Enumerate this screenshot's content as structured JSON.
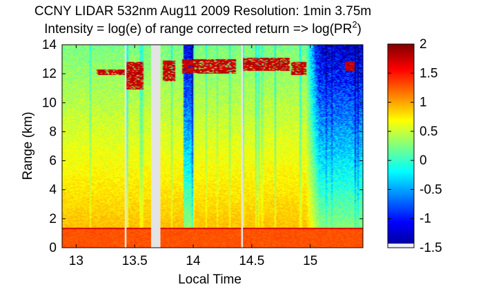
{
  "chart_data": {
    "type": "heatmap",
    "title_line1": "CCNY LIDAR 532nm Aug11 2009 Resolution: 1min 3.75m",
    "title_line2_prefix": "Intensity = log(e) of range corrected return => log(PR",
    "title_line2_superscript": "2",
    "title_line2_suffix": ")",
    "xlabel": "Local Time",
    "ylabel": "Range (km)",
    "xlim": [
      12.88,
      15.45
    ],
    "ylim": [
      0,
      14
    ],
    "xticks": [
      13,
      13.5,
      14,
      14.5,
      15
    ],
    "xtick_labels": [
      "13",
      "13.5",
      "14",
      "14.5",
      "15"
    ],
    "yticks": [
      0,
      2,
      4,
      6,
      8,
      10,
      12,
      14
    ],
    "ytick_labels": [
      "0",
      "2",
      "4",
      "6",
      "8",
      "10",
      "12",
      "14"
    ],
    "colorbar": {
      "range": [
        -1.5,
        2
      ],
      "ticks": [
        -1.5,
        -1,
        -0.5,
        0,
        0.5,
        1,
        1.5,
        2
      ],
      "tick_labels": [
        "-1.5",
        "-1",
        "-0.5",
        "0",
        "0.5",
        "1",
        "1.5",
        "2"
      ],
      "colormap": "jet"
    },
    "data_gaps": [
      {
        "x_start": 13.64,
        "x_end": 13.72
      },
      {
        "x_start": 13.415,
        "x_end": 13.43
      },
      {
        "x_start": 14.41,
        "x_end": 14.425
      }
    ],
    "boundary_layer_top_km": 1.4,
    "cloud_layers": [
      {
        "x_start": 13.17,
        "x_end": 13.42,
        "base_km": 11.9,
        "top_km": 12.3
      },
      {
        "x_start": 13.42,
        "x_end": 13.57,
        "base_km": 10.9,
        "top_km": 12.8
      },
      {
        "x_start": 13.74,
        "x_end": 13.85,
        "base_km": 11.5,
        "top_km": 12.9
      },
      {
        "x_start": 13.9,
        "x_end": 14.37,
        "base_km": 12.0,
        "top_km": 13.0
      },
      {
        "x_start": 14.42,
        "x_end": 14.82,
        "base_km": 12.2,
        "top_km": 13.1
      },
      {
        "x_start": 14.84,
        "x_end": 14.97,
        "base_km": 11.9,
        "top_km": 12.8
      },
      {
        "x_start": 15.3,
        "x_end": 15.38,
        "base_km": 12.2,
        "top_km": 12.8
      }
    ]
  }
}
